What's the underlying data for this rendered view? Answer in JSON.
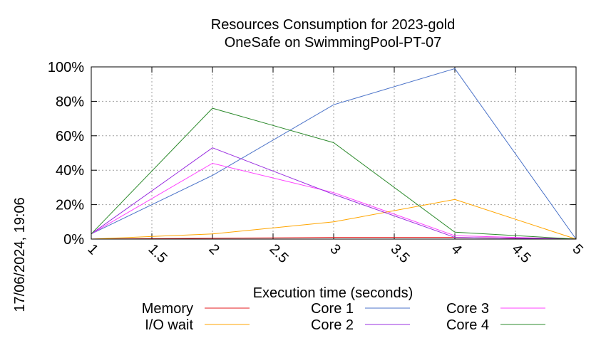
{
  "chart_data": {
    "type": "line",
    "title": "Resources Consumption for 2023-gold",
    "subtitle": "OneSafe on SwimmingPool-PT-07",
    "xlabel": "Execution time (seconds)",
    "ylabel": "",
    "side_label": "17/06/2024, 19:06",
    "xlim": [
      1,
      5
    ],
    "ylim": [
      0,
      100
    ],
    "x_ticks": [
      "1",
      "1.5",
      "2",
      "2.5",
      "3",
      "3.5",
      "4",
      "4.5",
      "5"
    ],
    "y_ticks": [
      "0%",
      "20%",
      "40%",
      "60%",
      "80%",
      "100%"
    ],
    "grid": true,
    "legend_position": "bottom",
    "x": [
      1,
      2,
      3,
      4,
      5
    ],
    "series": [
      {
        "name": "Memory",
        "color": "#e41a1c",
        "values": [
          0,
          0.5,
          1,
          1,
          0
        ]
      },
      {
        "name": "Core 1",
        "color": "#4a72c8",
        "values": [
          3,
          37,
          78,
          99,
          0
        ]
      },
      {
        "name": "Core 3",
        "color": "#ff40ff",
        "values": [
          3,
          44,
          27,
          2,
          0
        ]
      },
      {
        "name": "I/O wait",
        "color": "#ffa500",
        "values": [
          0,
          3,
          10,
          23,
          0
        ]
      },
      {
        "name": "Core 2",
        "color": "#9a30e0",
        "values": [
          3,
          53,
          26,
          1,
          0
        ]
      },
      {
        "name": "Core 4",
        "color": "#2e8b2e",
        "values": [
          3,
          76,
          56,
          4,
          0
        ]
      }
    ]
  }
}
